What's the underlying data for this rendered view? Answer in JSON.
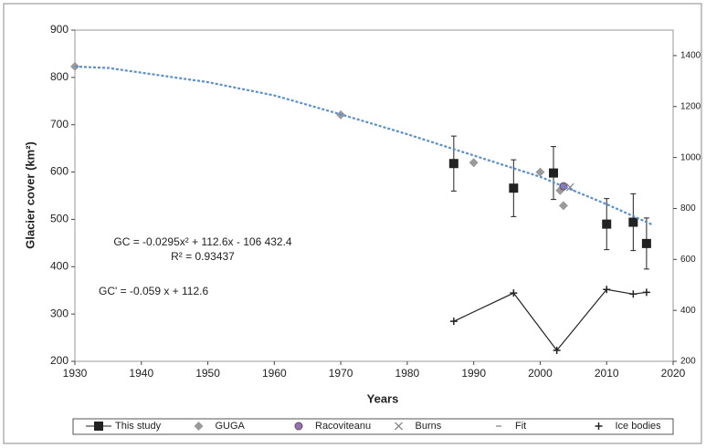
{
  "chart_data": {
    "type": "scatter",
    "x_label": "Years",
    "y_label": "Glacier cover (km²)",
    "xlim": [
      1930,
      2020
    ],
    "xticks": [
      1930,
      1940,
      1950,
      1960,
      1970,
      1980,
      1990,
      2000,
      2010,
      2020
    ],
    "ylim": [
      200,
      900
    ],
    "yticks": [
      200,
      300,
      400,
      500,
      600,
      700,
      800,
      900
    ],
    "y2lim": [
      200,
      1500
    ],
    "y2ticks": [
      200,
      400,
      600,
      800,
      1000,
      1200,
      1400
    ],
    "annotations": [
      "GC = -0.0295x² + 112.6x - 106 432.4",
      "R² = 0.93437",
      "GC' = -0.059 x + 112.6"
    ],
    "series": [
      {
        "name": "This study",
        "color": "#222222",
        "marker": "square",
        "x": [
          1987,
          1996,
          2002,
          2010,
          2014,
          2016
        ],
        "values": [
          618,
          566,
          598,
          490,
          494,
          449
        ],
        "errors": [
          58,
          60,
          56,
          54,
          60,
          54
        ]
      },
      {
        "name": "GUGA",
        "color": "#9a9a9a",
        "marker": "diamond",
        "x": [
          1930,
          1970,
          1990,
          2000,
          2003,
          2003.5
        ],
        "values": [
          823,
          721,
          620,
          600,
          561,
          529
        ]
      },
      {
        "name": "Racoviteanu",
        "color": "#9b6fb5",
        "marker": "circle",
        "x": [
          2003.5
        ],
        "values": [
          570
        ]
      },
      {
        "name": "Burns",
        "color": "#888888",
        "marker": "cross",
        "x": [
          2004.5
        ],
        "values": [
          568
        ]
      },
      {
        "name": "Fit",
        "color": "#5b8fd0",
        "marker": "dashline",
        "x": [
          1930,
          1935,
          1940,
          1950,
          1960,
          1970,
          1980,
          1990,
          2000,
          2010,
          2017
        ],
        "values": [
          823,
          820,
          810,
          790,
          762,
          722,
          680,
          635,
          590,
          532,
          488
        ]
      },
      {
        "name": "Ice bodies",
        "color": "#222222",
        "marker": "plus",
        "line": true,
        "axis": "y2",
        "x": [
          1987,
          1996,
          2002.5,
          2010,
          2014,
          2016
        ],
        "values": [
          357,
          468,
          243,
          482,
          464,
          471
        ]
      }
    ]
  }
}
